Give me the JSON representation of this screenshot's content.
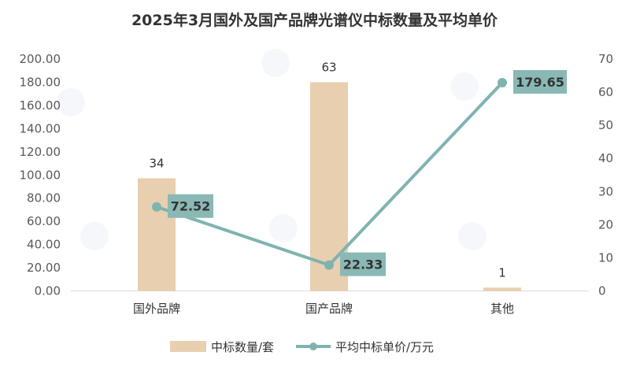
{
  "chart_data": {
    "type": "bar+line",
    "title": "2025年3月国外及国产品牌光谱仪中标数量及平均单价",
    "categories": [
      "国外品牌",
      "国产品牌",
      "其他"
    ],
    "series": [
      {
        "name": "中标数量/套",
        "type": "bar",
        "axis": "right",
        "values": [
          34,
          63,
          1
        ],
        "labels": [
          "34",
          "63",
          "1"
        ],
        "color": "#e8cfb0"
      },
      {
        "name": "平均中标单价/万元",
        "type": "line",
        "axis": "left",
        "values": [
          72.52,
          22.33,
          179.65
        ],
        "labels": [
          "72.52",
          "22.33",
          "179.65"
        ],
        "color": "#7fb3b0"
      }
    ],
    "y_left": {
      "min": 0,
      "max": 200,
      "ticks": [
        "0.00",
        "20.00",
        "40.00",
        "60.00",
        "80.00",
        "100.00",
        "120.00",
        "140.00",
        "160.00",
        "180.00",
        "200.00"
      ]
    },
    "y_right": {
      "min": 0,
      "max": 70,
      "ticks": [
        "0",
        "10",
        "20",
        "30",
        "40",
        "50",
        "60",
        "70"
      ]
    },
    "grid": false,
    "legend": "bottom",
    "label_box_color": "#8ab9b5"
  }
}
